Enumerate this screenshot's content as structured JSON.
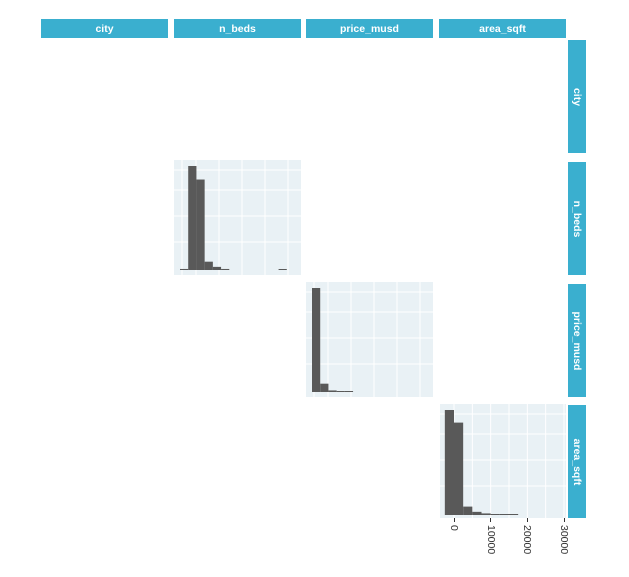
{
  "figure": {
    "columns": [
      "city",
      "n_beds",
      "price_musd",
      "area_sqft"
    ],
    "rows": [
      "city",
      "n_beds",
      "price_musd",
      "area_sqft"
    ]
  },
  "colors": {
    "strip": "#3aafcf",
    "strip_text": "#ffffff",
    "panel_background": "#e9f1f5",
    "grid": "#ffffff",
    "bars": "#595959"
  },
  "chart_data": [
    {
      "type": "bar",
      "panel": "n_beds",
      "bin_heights": [
        0.01,
        1.0,
        0.87,
        0.08,
        0.03,
        0.01,
        0.0,
        0.0,
        0.0,
        0.0,
        0.0,
        0.0,
        0.006,
        0.0
      ],
      "grid": true
    },
    {
      "type": "bar",
      "panel": "price_musd",
      "bin_heights": [
        1.0,
        0.08,
        0.015,
        0.008,
        0.004,
        0.0,
        0.0,
        0.0,
        0.0,
        0.0,
        0.0,
        0.0,
        0.0,
        0.0
      ],
      "grid": true
    },
    {
      "type": "bar",
      "panel": "area_sqft",
      "xlim": [
        -3000,
        30000
      ],
      "bin_width": 2500,
      "bin_start": -2500,
      "bin_heights": [
        1.0,
        0.88,
        0.08,
        0.03,
        0.015,
        0.005,
        0.002,
        0.001,
        0.0,
        0.0,
        0.0,
        0.0,
        0.0
      ],
      "x_ticks": [
        0,
        10000,
        20000,
        30000
      ],
      "x_tick_labels": [
        "0",
        "10000",
        "20000",
        "30000"
      ],
      "grid": true
    }
  ]
}
